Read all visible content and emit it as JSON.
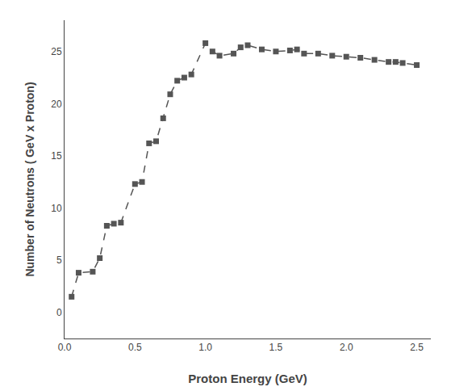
{
  "chart_data": {
    "type": "line",
    "xlabel": "Proton Energy (GeV)",
    "ylabel": "Number of Neutrons ( GeV x Proton)",
    "x": [
      0.05,
      0.1,
      0.2,
      0.25,
      0.3,
      0.35,
      0.4,
      0.5,
      0.55,
      0.6,
      0.65,
      0.7,
      0.75,
      0.8,
      0.85,
      0.9,
      1.0,
      1.05,
      1.1,
      1.2,
      1.25,
      1.3,
      1.4,
      1.5,
      1.6,
      1.65,
      1.7,
      1.8,
      1.9,
      2.0,
      2.1,
      2.2,
      2.3,
      2.35,
      2.4,
      2.5
    ],
    "values": [
      1.5,
      3.8,
      3.9,
      5.2,
      8.3,
      8.5,
      8.6,
      12.3,
      12.5,
      16.2,
      16.4,
      18.6,
      20.9,
      22.2,
      22.5,
      22.8,
      25.8,
      25.0,
      24.6,
      24.8,
      25.4,
      25.6,
      25.2,
      25.0,
      25.1,
      25.2,
      24.8,
      24.8,
      24.6,
      24.5,
      24.4,
      24.2,
      24.0,
      24.0,
      23.9,
      23.7
    ],
    "xlim": [
      0.0,
      2.6
    ],
    "ylim": [
      -2.5,
      28
    ],
    "xticks": [
      {
        "value": 0.0,
        "label": "0.0"
      },
      {
        "value": 0.5,
        "label": "0.5"
      },
      {
        "value": 1.0,
        "label": "1.0"
      },
      {
        "value": 1.5,
        "label": "1.5"
      },
      {
        "value": 2.0,
        "label": "2.0"
      },
      {
        "value": 2.5,
        "label": "2.5"
      }
    ],
    "yticks": [
      0,
      5,
      10,
      15,
      20,
      25
    ],
    "color": "#555555",
    "marker": "square",
    "line_style": "dashed",
    "grid": false
  }
}
